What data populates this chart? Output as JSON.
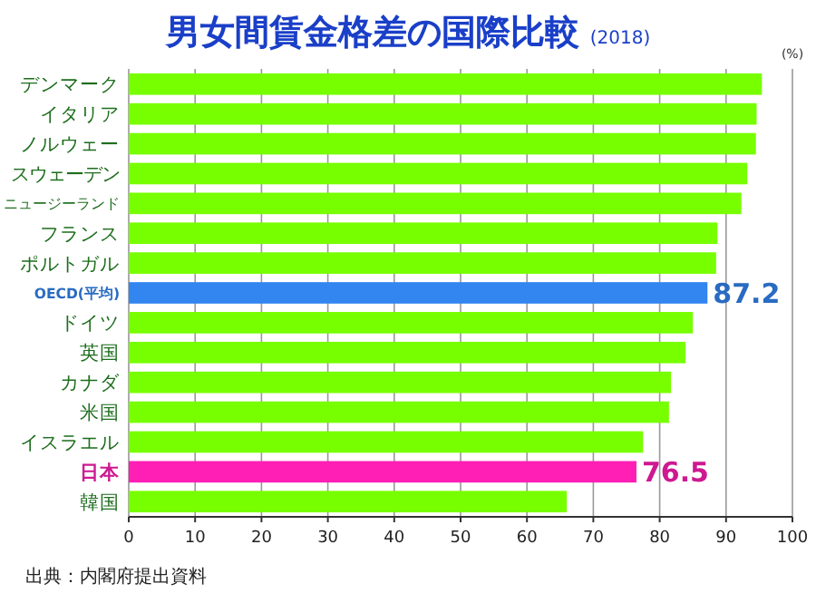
{
  "chart_data": {
    "type": "bar",
    "orientation": "horizontal",
    "title": "男女間賃金格差の国際比較",
    "subtitle": "(2018)",
    "xlabel": "(%)",
    "categories": [
      "デンマーク",
      "イタリア",
      "ノルウェー",
      "スウェーデン",
      "ニュージーランド",
      "フランス",
      "ポルトガル",
      "OECD(平均)",
      "ドイツ",
      "英国",
      "カナダ",
      "米国",
      "イスラエル",
      "日本",
      "韓国"
    ],
    "values": [
      95.4,
      94.6,
      94.5,
      93.2,
      92.3,
      88.7,
      88.5,
      87.2,
      85.0,
      83.9,
      81.7,
      81.4,
      77.5,
      76.5,
      66.0
    ],
    "colors": [
      "#77ff00",
      "#77ff00",
      "#77ff00",
      "#77ff00",
      "#77ff00",
      "#77ff00",
      "#77ff00",
      "#3385f0",
      "#77ff00",
      "#77ff00",
      "#77ff00",
      "#77ff00",
      "#77ff00",
      "#ff1fb4",
      "#77ff00"
    ],
    "value_labels": [
      null,
      null,
      null,
      null,
      null,
      null,
      null,
      "87.2",
      null,
      null,
      null,
      null,
      null,
      "76.5",
      null
    ],
    "xlim": [
      0,
      100
    ],
    "xticks": [
      0,
      10,
      20,
      30,
      40,
      50,
      60,
      70,
      80,
      90,
      100
    ],
    "grid": "x",
    "annotations": [
      "出典：内閣府提出資料"
    ]
  }
}
